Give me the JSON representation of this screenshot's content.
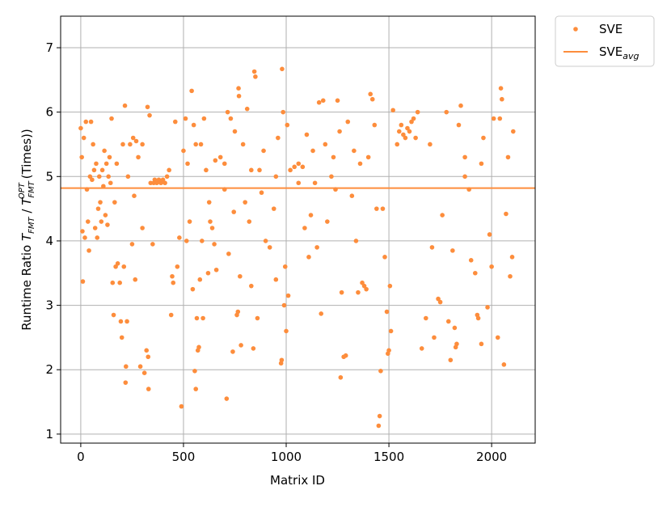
{
  "chart_data": {
    "type": "scatter",
    "xlabel": "Matrix ID",
    "ylabel": [
      "Runtime Ratio ",
      "T",
      "FMT",
      " / ",
      "T",
      "FMT",
      "OPT",
      " (Times))"
    ],
    "xlim": [
      -98,
      2212
    ],
    "ylim": [
      0.86,
      7.49
    ],
    "xticks": [
      0,
      500,
      1000,
      1500,
      2000
    ],
    "yticks": [
      1,
      2,
      3,
      4,
      5,
      6,
      7
    ],
    "grid": true,
    "legend": "outside upper right",
    "series": [
      {
        "name": "SVE",
        "color": "#fd8d3c",
        "x": [
          0,
          5,
          8,
          10,
          15,
          20,
          25,
          30,
          35,
          40,
          45,
          50,
          55,
          60,
          65,
          70,
          75,
          80,
          85,
          90,
          95,
          100,
          105,
          110,
          115,
          120,
          125,
          130,
          135,
          140,
          145,
          150,
          155,
          160,
          165,
          170,
          175,
          180,
          190,
          195,
          200,
          205,
          210,
          215,
          218,
          220,
          225,
          230,
          240,
          250,
          255,
          260,
          265,
          270,
          280,
          290,
          300,
          310,
          320,
          325,
          328,
          330,
          335,
          340,
          350,
          355,
          360,
          370,
          380,
          390,
          400,
          410,
          420,
          430,
          440,
          445,
          450,
          460,
          470,
          480,
          490,
          500,
          510,
          515,
          520,
          530,
          540,
          545,
          550,
          555,
          560,
          565,
          570,
          575,
          580,
          585,
          590,
          595,
          600,
          610,
          620,
          625,
          630,
          640,
          650,
          655,
          660,
          680,
          700,
          710,
          715,
          720,
          730,
          740,
          745,
          750,
          760,
          765,
          768,
          770,
          775,
          780,
          790,
          800,
          810,
          820,
          830,
          840,
          845,
          850,
          860,
          870,
          880,
          890,
          900,
          920,
          940,
          950,
          960,
          975,
          978,
          980,
          985,
          990,
          995,
          1000,
          1005,
          1010,
          1020,
          1040,
          1060,
          1080,
          1090,
          1100,
          1110,
          1120,
          1130,
          1140,
          1150,
          1160,
          1170,
          1180,
          1190,
          1200,
          1220,
          1240,
          1250,
          1260,
          1265,
          1270,
          1280,
          1290,
          1300,
          1320,
          1340,
          1350,
          1360,
          1370,
          1380,
          1390,
          1400,
          1410,
          1420,
          1430,
          1440,
          1450,
          1455,
          1460,
          1470,
          1480,
          1490,
          1495,
          1500,
          1505,
          1510,
          1520,
          1540,
          1560,
          1580,
          1600,
          1620,
          1640,
          1660,
          1680,
          1700,
          1710,
          1720,
          1740,
          1750,
          1760,
          1780,
          1790,
          1800,
          1810,
          1820,
          1825,
          1830,
          1840,
          1850,
          1870,
          1890,
          1900,
          1920,
          1930,
          1935,
          1950,
          1960,
          1980,
          1990,
          2000,
          2010,
          2030,
          2040,
          2045,
          2050,
          2060,
          2070,
          2080,
          2090,
          2100,
          2105,
          1550,
          1570,
          1590,
          1610,
          1630,
          1060,
          950,
          1230,
          1870,
          1950,
          300,
          560,
          700,
          830,
          1330
        ],
        "values": [
          5.75,
          5.3,
          4.15,
          3.37,
          5.6,
          4.05,
          5.85,
          4.8,
          4.3,
          3.85,
          5.0,
          5.85,
          4.95,
          5.5,
          5.1,
          4.2,
          5.2,
          4.05,
          4.5,
          5.0,
          4.6,
          4.3,
          5.1,
          4.85,
          5.4,
          4.4,
          5.2,
          4.25,
          5.0,
          5.3,
          4.9,
          5.9,
          3.35,
          2.85,
          4.6,
          3.6,
          5.2,
          3.65,
          3.35,
          2.75,
          2.5,
          5.5,
          3.6,
          6.1,
          1.8,
          2.05,
          2.75,
          5.0,
          5.5,
          3.95,
          5.6,
          4.7,
          3.4,
          5.55,
          5.3,
          2.05,
          4.2,
          1.95,
          2.3,
          6.08,
          2.2,
          1.7,
          5.95,
          4.9,
          3.95,
          4.9,
          4.95,
          4.9,
          4.95,
          4.9,
          4.95,
          4.9,
          5.0,
          5.1,
          2.85,
          3.45,
          3.35,
          5.85,
          3.6,
          4.05,
          1.43,
          5.4,
          5.9,
          4.0,
          5.2,
          4.3,
          6.33,
          3.25,
          5.8,
          1.98,
          1.7,
          2.8,
          2.3,
          2.35,
          3.4,
          5.5,
          4.0,
          2.8,
          5.9,
          5.1,
          3.5,
          4.6,
          4.3,
          4.2,
          3.95,
          5.25,
          3.55,
          5.3,
          4.8,
          1.55,
          6.0,
          3.8,
          5.9,
          2.28,
          4.45,
          5.7,
          2.85,
          2.9,
          6.37,
          6.25,
          3.45,
          2.38,
          5.5,
          4.6,
          6.05,
          4.3,
          3.3,
          2.33,
          6.63,
          6.55,
          2.8,
          5.1,
          4.75,
          5.4,
          4.0,
          3.9,
          4.5,
          3.4,
          5.6,
          2.1,
          2.15,
          6.67,
          6.0,
          3.0,
          3.6,
          2.6,
          5.8,
          3.15,
          5.1,
          5.15,
          5.2,
          5.15,
          4.2,
          5.65,
          3.75,
          4.4,
          5.4,
          4.9,
          3.9,
          6.15,
          2.87,
          6.18,
          5.5,
          4.3,
          5.0,
          4.8,
          6.18,
          5.7,
          1.88,
          3.2,
          2.2,
          2.22,
          5.85,
          4.7,
          4.0,
          3.2,
          5.2,
          3.35,
          3.3,
          3.25,
          5.3,
          6.28,
          6.2,
          5.8,
          4.5,
          1.13,
          1.28,
          1.98,
          4.5,
          3.75,
          2.9,
          2.25,
          2.3,
          3.3,
          2.6,
          6.03,
          5.5,
          5.8,
          5.6,
          5.7,
          5.9,
          6.0,
          2.33,
          2.8,
          5.5,
          3.9,
          2.5,
          3.1,
          3.05,
          4.4,
          6.0,
          2.75,
          2.15,
          3.85,
          2.65,
          2.35,
          2.4,
          5.8,
          6.1,
          5.3,
          4.8,
          3.7,
          3.5,
          2.85,
          2.8,
          2.4,
          5.6,
          2.97,
          4.1,
          3.6,
          5.9,
          2.5,
          5.9,
          6.37,
          6.2,
          2.08,
          4.42,
          5.3,
          3.45,
          3.75,
          5.7,
          5.7,
          5.65,
          5.75,
          5.85,
          5.6,
          4.9,
          5.0,
          5.3,
          5.0,
          5.2,
          5.5,
          5.5,
          5.2,
          5.1,
          5.4
        ]
      },
      {
        "type": "line",
        "name": "SVE",
        "name_subscript": "avg",
        "color": "#fd8d3c",
        "values": [
          4.82
        ]
      }
    ]
  }
}
